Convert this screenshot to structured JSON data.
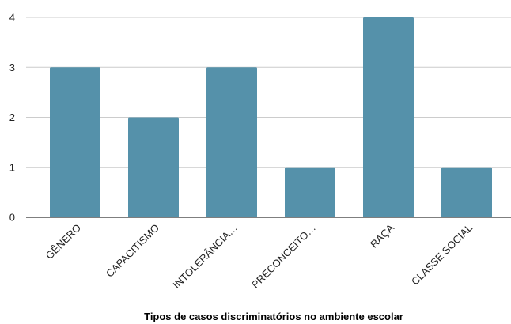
{
  "chart_data": {
    "type": "bar",
    "categories": [
      "GÊNERO",
      "CAPACITISMO",
      "INTOLERÂNCIA…",
      "PRECONCEITO…",
      "RAÇA",
      "CLASSE SOCIAL"
    ],
    "values": [
      3,
      2,
      3,
      1,
      4,
      1
    ],
    "title": "",
    "xlabel": "Tipos de  casos discriminatórios no ambiente escolar",
    "ylabel": "",
    "ylim": [
      0,
      4
    ],
    "yticks": [
      0,
      1,
      2,
      3,
      4
    ],
    "grid": true,
    "colors": {
      "bar": "#5591aa",
      "grid": "#cccccc",
      "axis": "#333333"
    }
  }
}
